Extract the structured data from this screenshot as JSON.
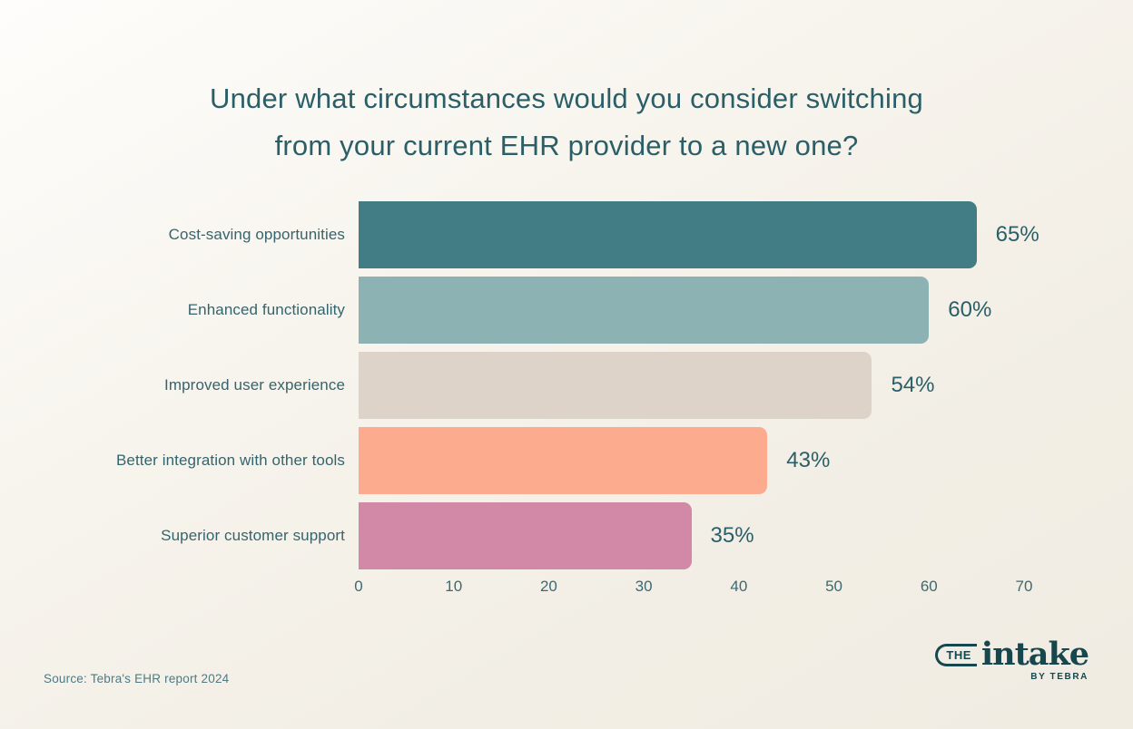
{
  "title": {
    "line1": "Under what circumstances would you consider switching",
    "line2": "from your current EHR provider to a new one?"
  },
  "chart_data": {
    "type": "bar",
    "orientation": "horizontal",
    "title": "Under what circumstances would you consider switching from your current EHR provider to a new one?",
    "categories": [
      "Cost-saving opportunities",
      "Enhanced functionality",
      "Improved user experience",
      "Better integration with other tools",
      "Superior customer support"
    ],
    "values": [
      65,
      60,
      54,
      43,
      35
    ],
    "value_labels": [
      "65%",
      "60%",
      "54%",
      "43%",
      "35%"
    ],
    "bar_colors": [
      "#427d85",
      "#8cb2b4",
      "#ded3c8",
      "#fdab8f",
      "#d189a7"
    ],
    "xlim": [
      0,
      70
    ],
    "x_ticks": [
      "0",
      "10",
      "20",
      "30",
      "40",
      "50",
      "60",
      "70"
    ],
    "grid": false,
    "legend": "none",
    "xlabel": "",
    "ylabel": ""
  },
  "source": {
    "text": "Source: Tebra's EHR report 2024"
  },
  "logo": {
    "the_label": "THE",
    "wordmark": "intake",
    "byline": "BY TEBRA",
    "color": "#17474e"
  },
  "text_colors": {
    "title": "#2b5f68",
    "labels": "#35646d",
    "values": "#2b5f68",
    "axis": "#3a6a72",
    "source": "#4f7a83"
  }
}
